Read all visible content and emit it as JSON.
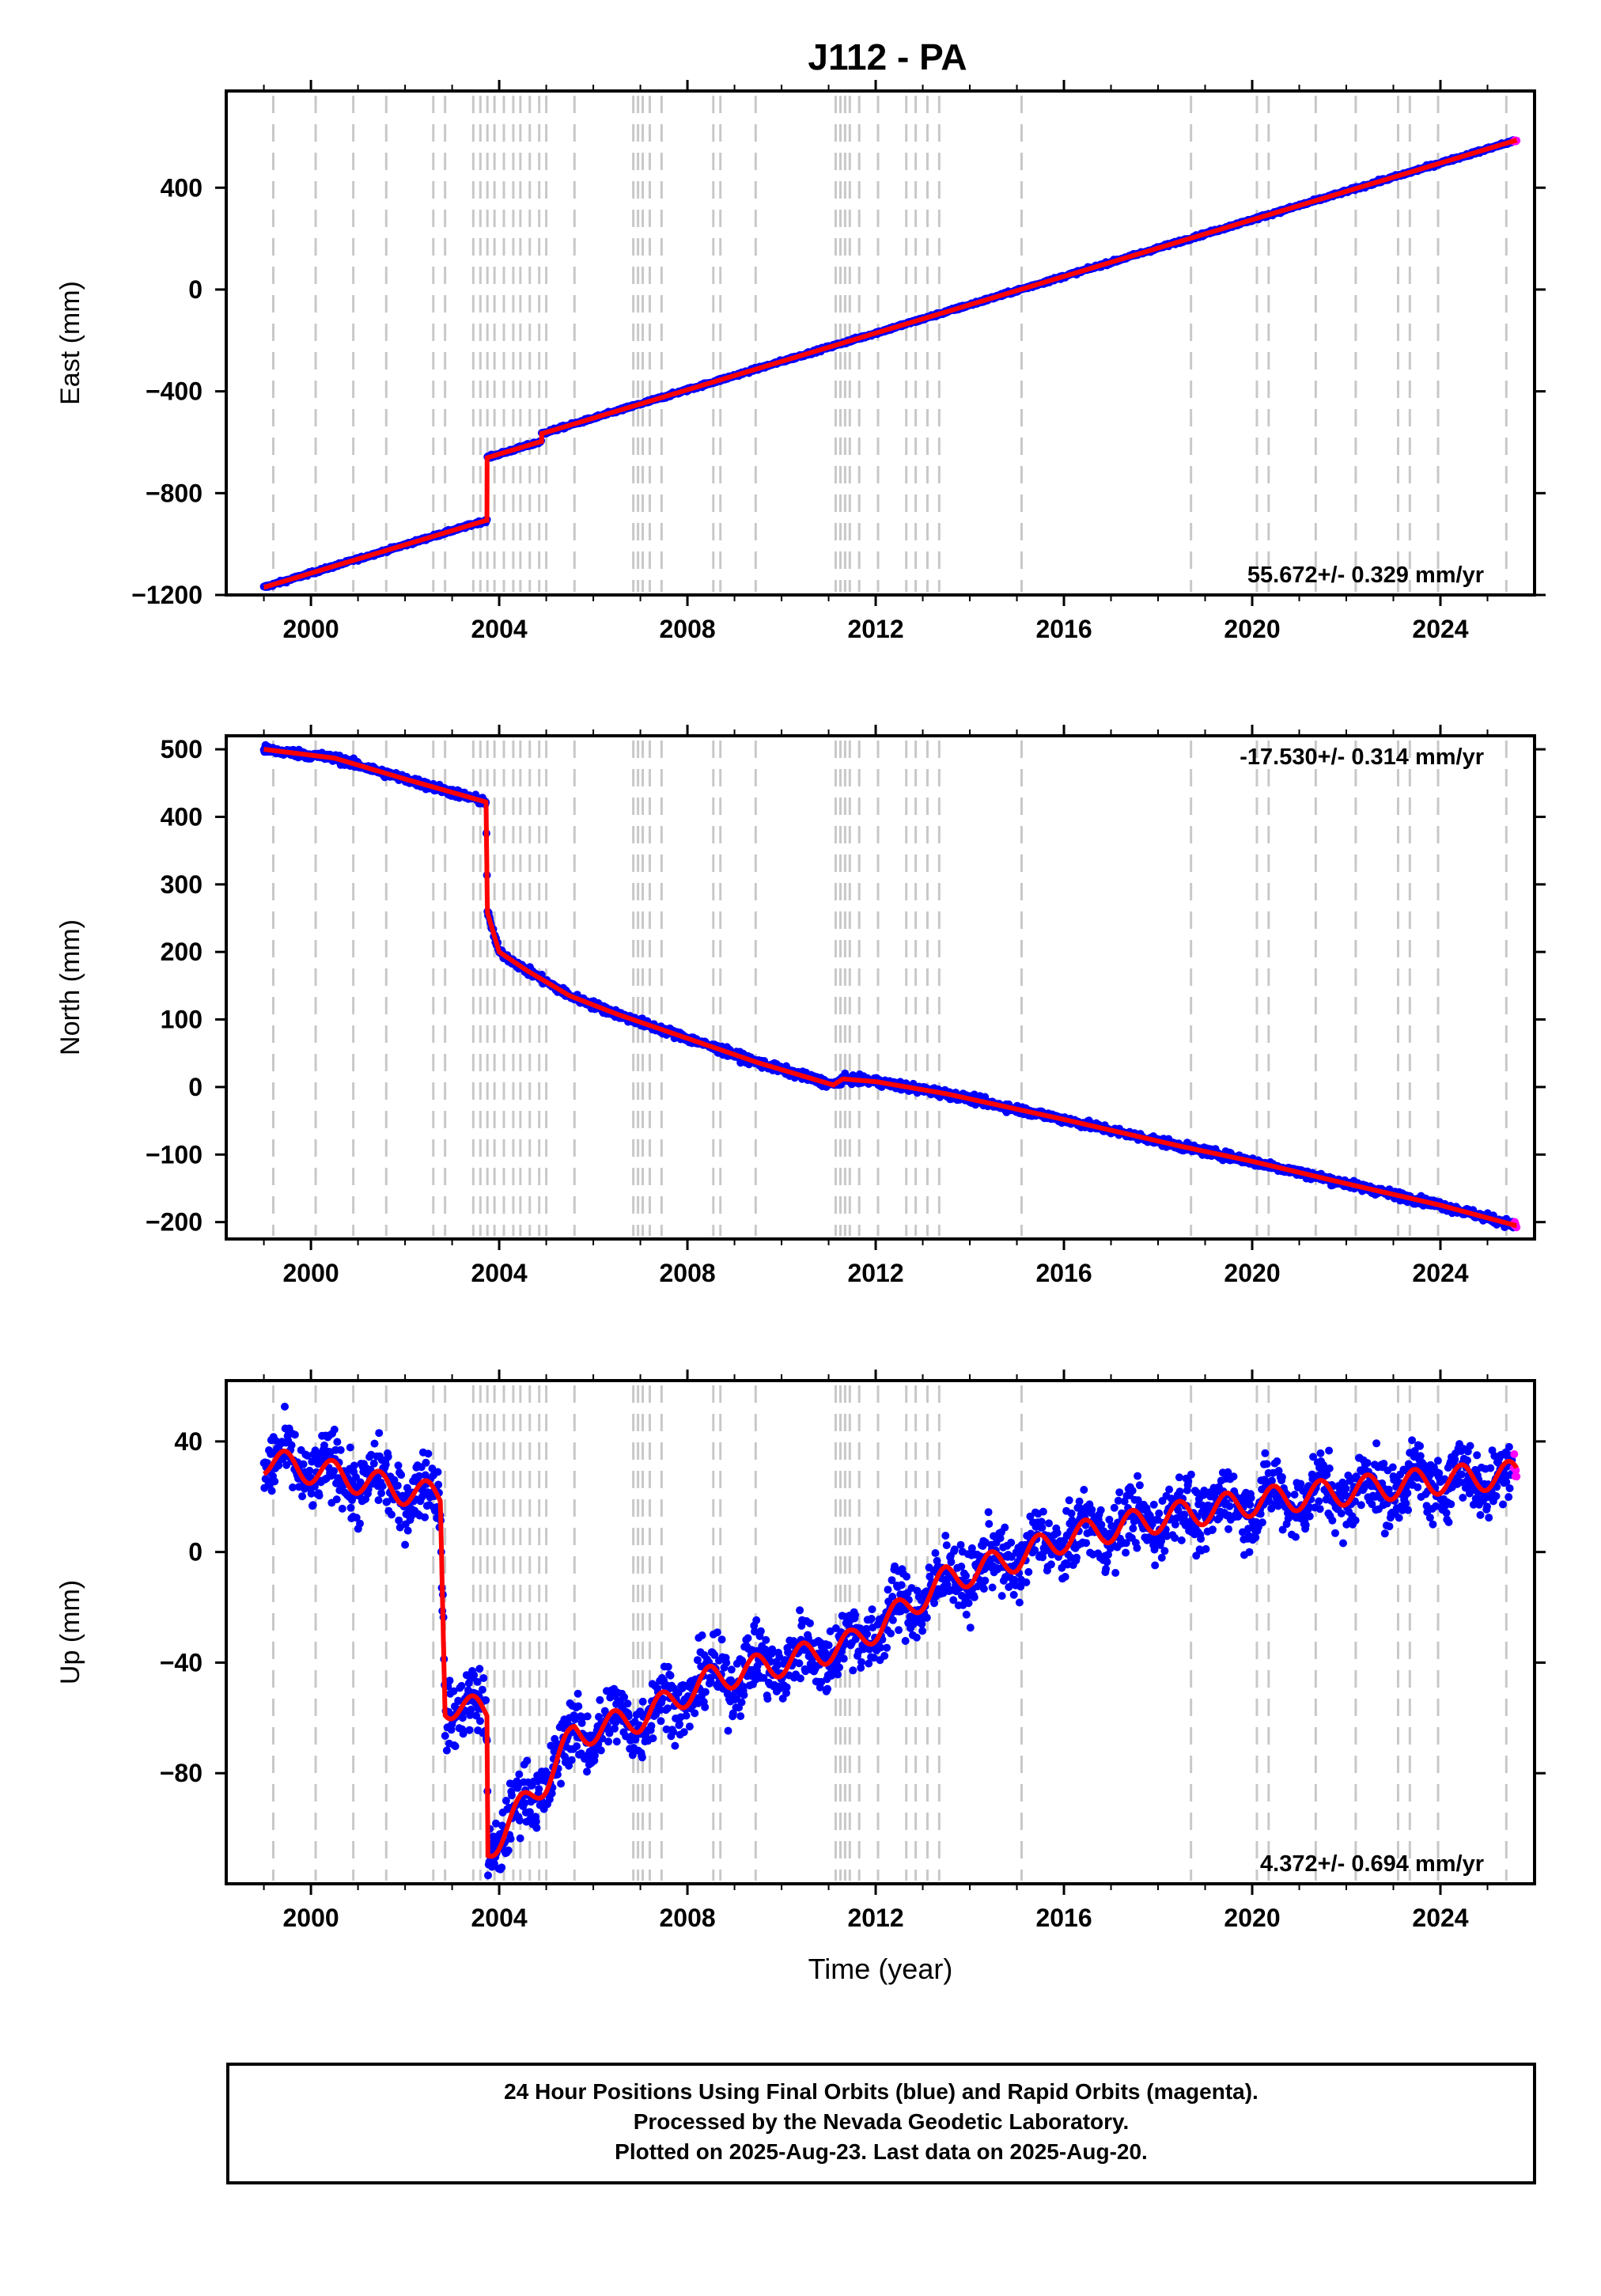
{
  "title": "J112 - PA",
  "footer": {
    "line1": "24 Hour Positions Using Final Orbits (blue) and Rapid Orbits (magenta).",
    "line2": "Processed by the Nevada Geodetic Laboratory.",
    "line3": "Plotted on 2025-Aug-23. Last data on 2025-Aug-20."
  },
  "colors": {
    "final_orbits": "#0000ff",
    "rapid_orbits": "#ff00ff",
    "model_fit": "#ff0000",
    "event_lines": "#c8c8c8"
  },
  "chart_data": [
    {
      "type": "scatter",
      "name": "east",
      "ylabel": "East (mm)",
      "xlabel": "",
      "xlim": [
        1998.2,
        2026.0
      ],
      "ylim": [
        -1200,
        780
      ],
      "xticks": [
        "2000",
        "2004",
        "2008",
        "2012",
        "2016",
        "2020",
        "2024"
      ],
      "yticks": [
        "400",
        "0",
        "−400",
        "−800",
        "−1200"
      ],
      "rate": "55.672+/- 0.329 mm/yr",
      "rate_position": "bottom-right",
      "trend": {
        "slope": 55.672,
        "t0": 1999.0,
        "y0": -1170,
        "offsets": [
          {
            "t": 2003.74,
            "dy": 245
          },
          {
            "t": 2004.9,
            "dy": 30
          }
        ]
      },
      "noise": 3,
      "seasonal": 0,
      "rapid_start": 2025.55
    },
    {
      "type": "scatter",
      "name": "north",
      "ylabel": "North (mm)",
      "xlabel": "",
      "xlim": [
        1998.2,
        2026.0
      ],
      "ylim": [
        -225,
        520
      ],
      "xticks": [
        "2000",
        "2004",
        "2008",
        "2012",
        "2016",
        "2020",
        "2024"
      ],
      "yticks": [
        "500",
        "400",
        "300",
        "200",
        "100",
        "0",
        "−100",
        "−200"
      ],
      "rate": "-17.530+/- 0.314 mm/yr",
      "rate_position": "top-right",
      "knots": [
        [
          1999.0,
          500
        ],
        [
          2000.5,
          487
        ],
        [
          2002.0,
          456
        ],
        [
          2003.72,
          422
        ],
        [
          2003.75,
          258
        ],
        [
          2004.0,
          200
        ],
        [
          2004.6,
          172
        ],
        [
          2005.5,
          135
        ],
        [
          2006.5,
          108
        ],
        [
          2008.0,
          72
        ],
        [
          2009.5,
          36
        ],
        [
          2011.1,
          3
        ],
        [
          2011.3,
          12
        ],
        [
          2012.0,
          8
        ],
        [
          2013.5,
          -10
        ],
        [
          2016.0,
          -48
        ],
        [
          2018.5,
          -88
        ],
        [
          2020.0,
          -110
        ],
        [
          2022.0,
          -143
        ],
        [
          2024.0,
          -175
        ],
        [
          2025.6,
          -205
        ]
      ],
      "noise": 3,
      "seasonal": 0,
      "rapid_start": 2025.55
    },
    {
      "type": "scatter",
      "name": "up",
      "ylabel": "Up (mm)",
      "xlabel": "Time (year)",
      "xlim": [
        1998.2,
        2026.0
      ],
      "ylim": [
        -120,
        62
      ],
      "xticks": [
        "2000",
        "2004",
        "2008",
        "2012",
        "2016",
        "2020",
        "2024"
      ],
      "yticks": [
        "40",
        "0",
        "−40",
        "−80"
      ],
      "rate": "4.372+/- 0.694 mm/yr",
      "rate_position": "bottom-right",
      "knots": [
        [
          1999.0,
          33
        ],
        [
          2000.5,
          28
        ],
        [
          2002.0,
          22
        ],
        [
          2002.75,
          20
        ],
        [
          2002.85,
          -55
        ],
        [
          2003.74,
          -58
        ],
        [
          2003.76,
          -108
        ],
        [
          2004.2,
          -98
        ],
        [
          2005.0,
          -82
        ],
        [
          2005.6,
          -66
        ],
        [
          2007.0,
          -60
        ],
        [
          2008.5,
          -46
        ],
        [
          2010.0,
          -40
        ],
        [
          2011.5,
          -33
        ],
        [
          2012.5,
          -22
        ],
        [
          2013.5,
          -10
        ],
        [
          2015.0,
          -2
        ],
        [
          2016.0,
          5
        ],
        [
          2018.0,
          12
        ],
        [
          2020.0,
          18
        ],
        [
          2022.0,
          22
        ],
        [
          2024.0,
          26
        ],
        [
          2025.6,
          28
        ]
      ],
      "noise": 6,
      "seasonal": 5,
      "rapid_start": 2025.55
    }
  ],
  "event_lines": [
    1999.2,
    2000.1,
    2000.9,
    2001.6,
    2002.6,
    2002.85,
    2003.45,
    2003.6,
    2003.75,
    2003.9,
    2004.1,
    2004.3,
    2004.45,
    2004.65,
    2004.85,
    2005.0,
    2005.6,
    2006.85,
    2006.95,
    2007.05,
    2007.2,
    2007.45,
    2008.55,
    2008.7,
    2009.45,
    2011.15,
    2011.25,
    2011.35,
    2011.45,
    2011.65,
    2012.05,
    2012.65,
    2012.85,
    2013.1,
    2013.35,
    2015.1,
    2018.7,
    2020.1,
    2020.35,
    2021.35,
    2022.2,
    2023.1,
    2023.35,
    2023.95,
    2025.4
  ]
}
